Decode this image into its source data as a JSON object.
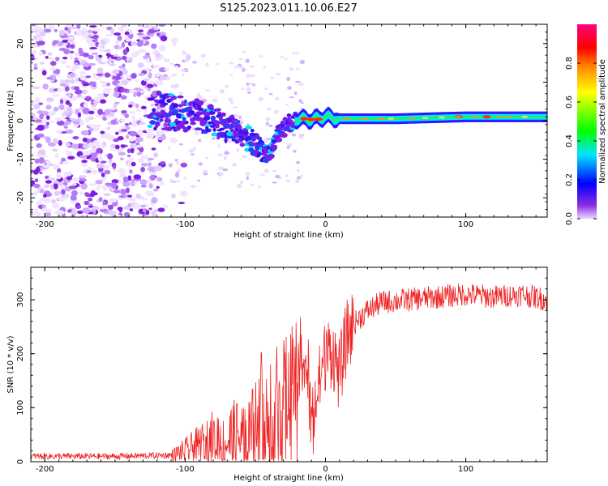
{
  "title": "S125.2023.011.10.06.E27",
  "chart_data": [
    {
      "type": "heatmap",
      "title": "S125.2023.011.10.06.E27",
      "xlabel": "Height of straight line (km)",
      "ylabel": "Frequency (Hz)",
      "xlim": [
        -210,
        158
      ],
      "ylim": [
        -25,
        25
      ],
      "xticks": [
        -200,
        -100,
        0,
        100
      ],
      "yticks": [
        -20,
        -10,
        0,
        10,
        20
      ],
      "description_series": [
        {
          "name": "signal_center_frequency",
          "x": [
            -120,
            -105,
            -90,
            -75,
            -62,
            -50,
            -42,
            -35,
            -28,
            -20,
            -10,
            0,
            10,
            50,
            100,
            158
          ],
          "values": [
            3,
            2,
            1,
            -1,
            -3,
            -6,
            -9,
            -5,
            -1,
            0.5,
            0.3,
            1,
            0.5,
            0.5,
            1,
            1
          ]
        }
      ],
      "colorbar": {
        "label": "Normalized spectral amplitude",
        "range": [
          0,
          1
        ],
        "ticks": [
          0.0,
          0.2,
          0.4,
          0.6,
          0.8
        ],
        "tick_labels": [
          "0.0",
          "0.2",
          "0.4",
          "0.6",
          "0.8"
        ],
        "colors": [
          "#e8d8ff",
          "#8a2be2",
          "#0000ff",
          "#00e5ff",
          "#00ff00",
          "#ffff00",
          "#ff8800",
          "#ff0000",
          "#ff0080"
        ]
      }
    },
    {
      "type": "line",
      "xlabel": "Height of straight line (km)",
      "ylabel": "SNR (10 * v/v)",
      "xlim": [
        -210,
        158
      ],
      "ylim": [
        0,
        360
      ],
      "xticks": [
        -200,
        -100,
        0,
        100
      ],
      "yticks": [
        0,
        100,
        200,
        300
      ],
      "series": [
        {
          "name": "SNR",
          "color": "#ee2222",
          "x": [
            -210,
            -150,
            -110,
            -100,
            -90,
            -80,
            -70,
            -60,
            -50,
            -40,
            -30,
            -20,
            -15,
            -10,
            -5,
            0,
            5,
            10,
            15,
            20,
            30,
            40,
            60,
            80,
            100,
            120,
            140,
            158
          ],
          "values": [
            10,
            10,
            12,
            20,
            30,
            45,
            40,
            45,
            55,
            75,
            105,
            140,
            210,
            70,
            140,
            200,
            205,
            160,
            230,
            255,
            280,
            295,
            300,
            305,
            310,
            305,
            310,
            300
          ]
        }
      ]
    }
  ]
}
